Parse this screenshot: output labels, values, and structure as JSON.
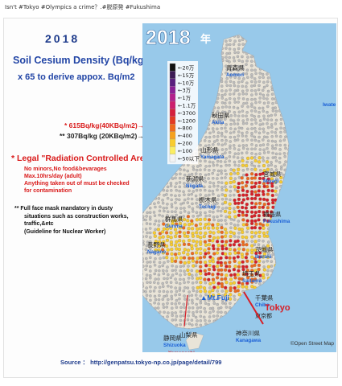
{
  "header": {
    "text": "Isn't #Tokyo #Olympics a crime？.#脱原発 #Fukushima"
  },
  "panel": {
    "year": "2018",
    "title": "Soil Cesium Density (Bq/kg)",
    "subtitle": "x 65 to derive appox. Bq/m2",
    "ref_615": "* 615Bq/kg(40KBq/m2)→",
    "ref_307": "** 307Bq/kg (20KBq/m2)→",
    "legal_title": "* Legal \"Radiation Controlled Area\"",
    "legal_lines": [
      "No minors,No food&bevarages",
      "Max.10hrs/day (adult)",
      "Anything taken out of must be checked",
      "for contamination"
    ],
    "mask_lines": [
      "** Full face mask mandatory in dusty",
      "situations such as construction works,",
      "traffic,&etc",
      "(Guideline for Nuclear Worker)"
    ],
    "source": "Source ： http://genpatsu.tokyo-np.co.jp/page/detail/799"
  },
  "map": {
    "year_label": "2018",
    "year_suffix": "年",
    "attribution": "©Open Street Map",
    "legend": [
      {
        "label": "20万",
        "color": "#111111"
      },
      {
        "label": "15万",
        "color": "#3b1a55"
      },
      {
        "label": "10万",
        "color": "#5a1f7f"
      },
      {
        "label": "3万",
        "color": "#8a1f95"
      },
      {
        "label": "1万",
        "color": "#b21f8c"
      },
      {
        "label": "1.1万",
        "color": "#cc1f6e"
      },
      {
        "label": "3700",
        "color": "#d41f3c"
      },
      {
        "label": "1200",
        "color": "#e23a22"
      },
      {
        "label": "800",
        "color": "#ee6a1c"
      },
      {
        "label": "400",
        "color": "#f5a11d"
      },
      {
        "label": "200",
        "color": "#f8cc2e"
      },
      {
        "label": "100",
        "color": "#fbee62"
      },
      {
        "label": "50以下",
        "color": "#f3f3f3"
      }
    ],
    "places": [
      {
        "jp": "青森県",
        "en": "Aomori"
      },
      {
        "jp": "秋田県",
        "en": "Akita"
      },
      {
        "jp": "山形県",
        "en": "Yamagata"
      },
      {
        "jp": "新潟県",
        "en": "Niigata"
      },
      {
        "jp": "栃木県",
        "en": "Tochigi"
      },
      {
        "jp": "群馬県",
        "en": "Gunma"
      },
      {
        "jp": "長野県",
        "en": "Nagano"
      },
      {
        "jp": "宮城県",
        "en": "Miyagi"
      },
      {
        "jp": "福島県",
        "en": "Fukushima"
      },
      {
        "jp": "茨城県",
        "en": "Ibaraki"
      },
      {
        "jp": "埼玉県",
        "en": "Saitama"
      },
      {
        "jp": "千葉県",
        "en": "Chiba"
      },
      {
        "jp": "静岡県",
        "en": "Shizuoka"
      },
      {
        "jp": "山梨県",
        "en": "Yamanashi"
      },
      {
        "jp": "神奈川県",
        "en": "Kanagawa"
      },
      {
        "jp": "東京都",
        "en": "Tokyo"
      }
    ],
    "iwate": "Iwate",
    "mt_fuji": "▲Mt.Fuji",
    "tokyo_callout": "Tokyo",
    "colors": {
      "sea": "#98c9ea",
      "land": "#e9e4d8",
      "red": "#d81e26",
      "orange": "#ee6a1c",
      "yellow": "#f8cc2e",
      "grey_dot": "#bdbdbd",
      "label_blue": "#1a5fd6",
      "label_green": "#1f9c3a"
    }
  }
}
